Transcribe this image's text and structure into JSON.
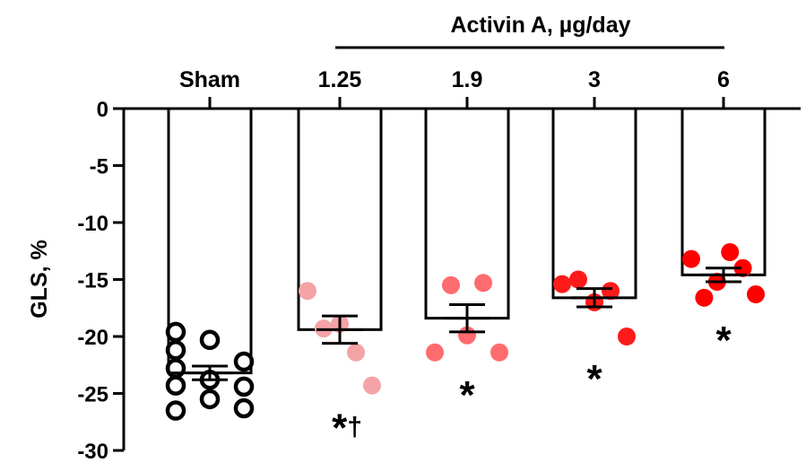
{
  "chart_data": {
    "type": "bar",
    "orientation": "bars hanging down from 0",
    "ylabel": "GLS, %",
    "ylim": [
      -30,
      0
    ],
    "yticks": [
      0,
      -5,
      -10,
      -15,
      -20,
      -25,
      -30
    ],
    "ytick_labels": [
      "0",
      "-5",
      "-10",
      "-15",
      "-20",
      "-25",
      "-30"
    ],
    "group_label": "Activin A, µg/day",
    "categories": [
      "Sham",
      "1.25",
      "1.9",
      "3",
      "6"
    ],
    "means": [
      -23.2,
      -19.4,
      -18.4,
      -16.6,
      -14.6
    ],
    "sem": [
      0.6,
      1.2,
      1.2,
      0.8,
      0.6
    ],
    "points": [
      [
        -19.6,
        -21.2,
        -22.8,
        -24.3,
        -26.5,
        -20.3,
        -23.8,
        -25.5,
        -22.2,
        -24.4,
        -26.3
      ],
      [
        -16.0,
        -19.3,
        -18.9,
        -21.4,
        -24.3
      ],
      [
        -21.4,
        -15.5,
        -19.9,
        -15.3,
        -21.4
      ],
      [
        -15.4,
        -15.0,
        -17.0,
        -16.0,
        -20.0
      ],
      [
        -13.2,
        -16.6,
        -15.2,
        -12.6,
        -14.0,
        -16.3
      ]
    ],
    "point_colors": [
      "#000000",
      "#f4a3a6",
      "#ff6b6e",
      "#ff1a1a",
      "#ff0000"
    ],
    "open_markers": [
      true,
      false,
      false,
      false,
      false
    ],
    "significance": [
      "",
      "*†",
      "*",
      "*",
      "*"
    ]
  }
}
